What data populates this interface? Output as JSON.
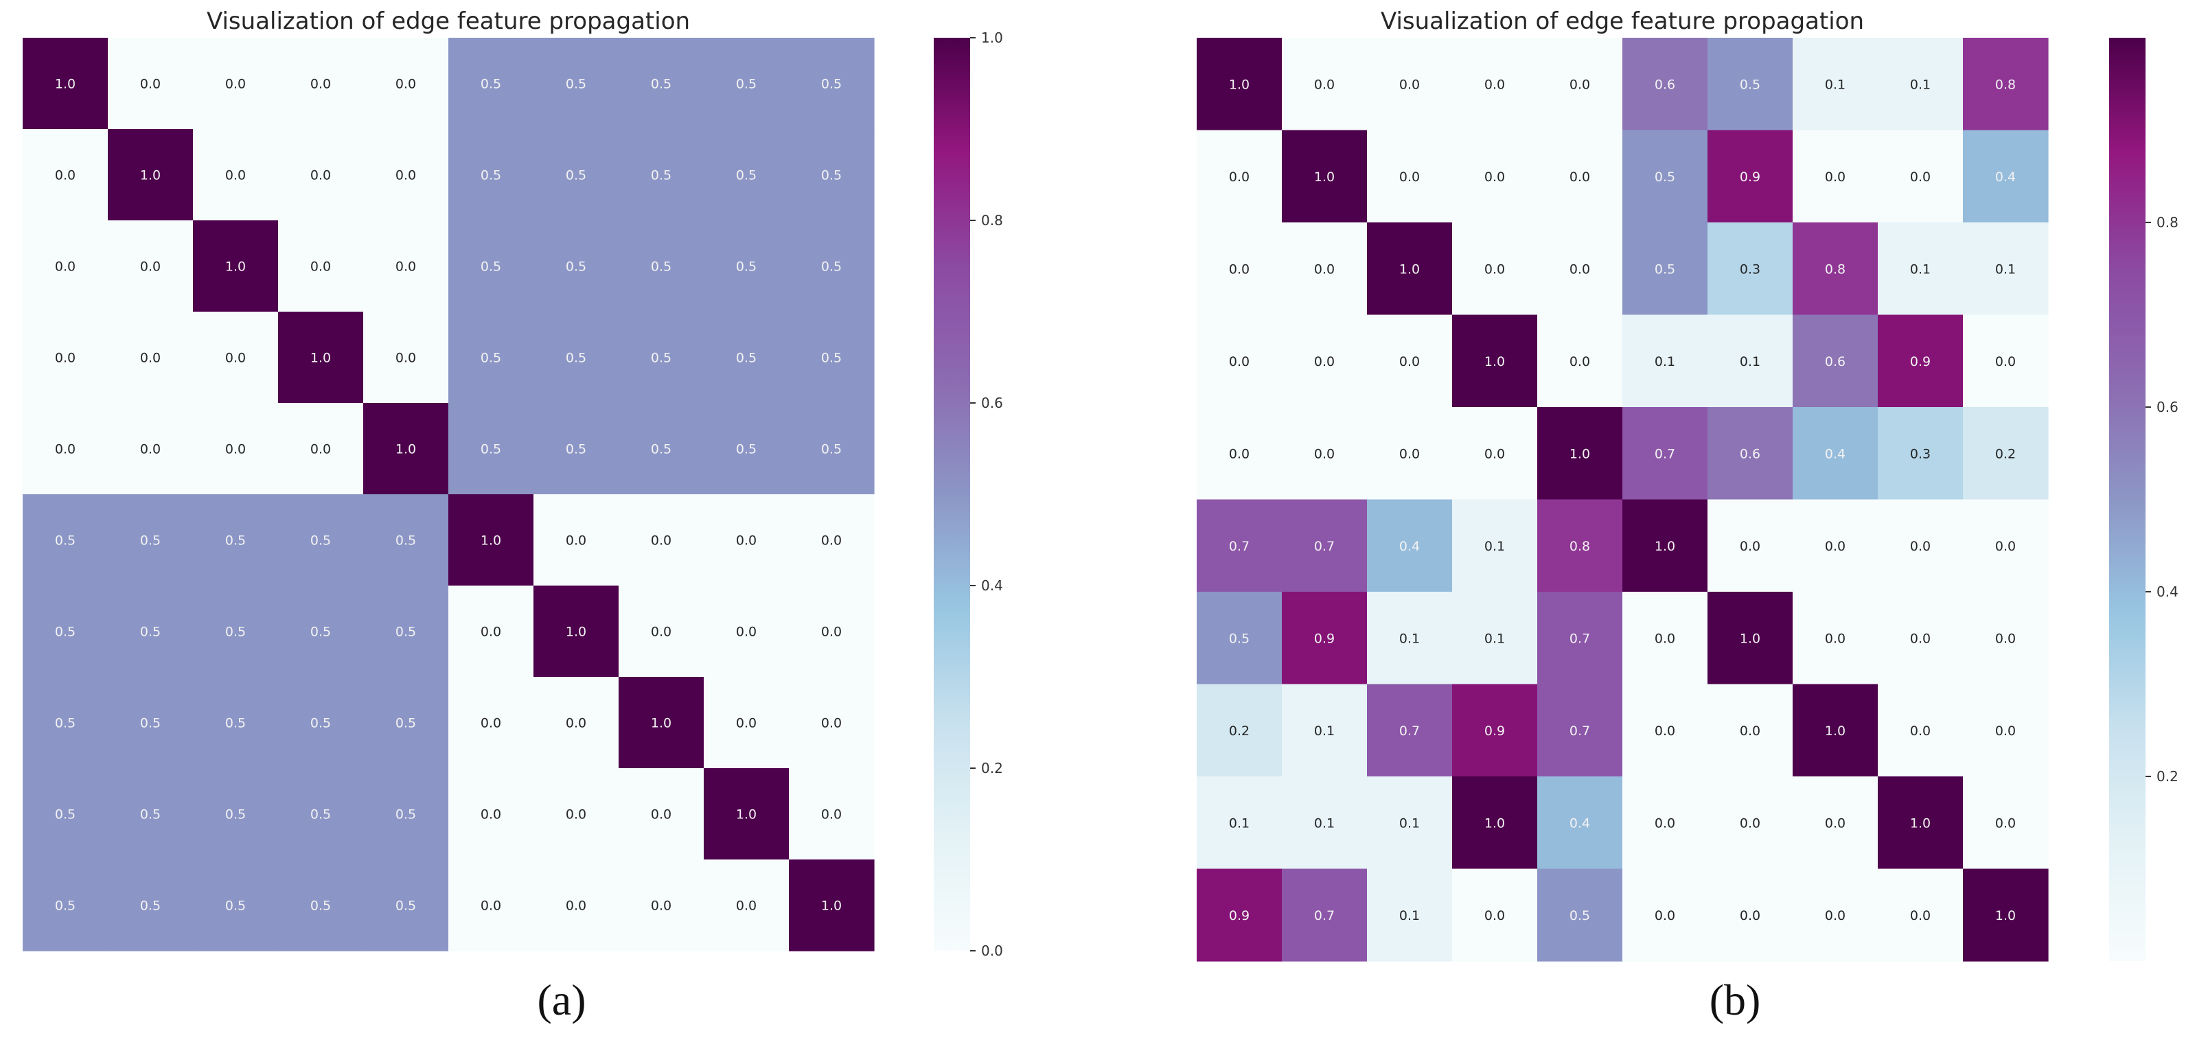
{
  "chart_data": [
    {
      "type": "heatmap",
      "panel_label": "(a)",
      "title": "Visualization of edge feature propagation",
      "xlabel": "",
      "ylabel": "",
      "colormap": "BuPu",
      "vmin": 0.0,
      "vmax": 1.0,
      "colorbar_ticks": [
        "0.0",
        "0.2",
        "0.4",
        "0.6",
        "0.8",
        "1.0"
      ],
      "colorbar_tick_values": [
        0.0,
        0.2,
        0.4,
        0.6,
        0.8,
        1.0
      ],
      "annotations": true,
      "matrix": [
        [
          1.0,
          0.0,
          0.0,
          0.0,
          0.0,
          0.5,
          0.5,
          0.5,
          0.5,
          0.5
        ],
        [
          0.0,
          1.0,
          0.0,
          0.0,
          0.0,
          0.5,
          0.5,
          0.5,
          0.5,
          0.5
        ],
        [
          0.0,
          0.0,
          1.0,
          0.0,
          0.0,
          0.5,
          0.5,
          0.5,
          0.5,
          0.5
        ],
        [
          0.0,
          0.0,
          0.0,
          1.0,
          0.0,
          0.5,
          0.5,
          0.5,
          0.5,
          0.5
        ],
        [
          0.0,
          0.0,
          0.0,
          0.0,
          1.0,
          0.5,
          0.5,
          0.5,
          0.5,
          0.5
        ],
        [
          0.5,
          0.5,
          0.5,
          0.5,
          0.5,
          1.0,
          0.0,
          0.0,
          0.0,
          0.0
        ],
        [
          0.5,
          0.5,
          0.5,
          0.5,
          0.5,
          0.0,
          1.0,
          0.0,
          0.0,
          0.0
        ],
        [
          0.5,
          0.5,
          0.5,
          0.5,
          0.5,
          0.0,
          0.0,
          1.0,
          0.0,
          0.0
        ],
        [
          0.5,
          0.5,
          0.5,
          0.5,
          0.5,
          0.0,
          0.0,
          0.0,
          1.0,
          0.0
        ],
        [
          0.5,
          0.5,
          0.5,
          0.5,
          0.5,
          0.0,
          0.0,
          0.0,
          0.0,
          1.0
        ]
      ]
    },
    {
      "type": "heatmap",
      "panel_label": "(b)",
      "title": "Visualization of edge feature propagation",
      "xlabel": "",
      "ylabel": "",
      "colormap": "BuPu",
      "vmin": 0.0,
      "vmax": 1.0,
      "colorbar_ticks": [
        "0.2",
        "0.4",
        "0.6",
        "0.8"
      ],
      "colorbar_tick_values": [
        0.2,
        0.4,
        0.6,
        0.8
      ],
      "annotations": true,
      "matrix": [
        [
          1.0,
          0.0,
          0.0,
          0.0,
          0.0,
          0.6,
          0.5,
          0.1,
          0.1,
          0.8
        ],
        [
          0.0,
          1.0,
          0.0,
          0.0,
          0.0,
          0.5,
          0.9,
          0.0,
          0.0,
          0.4
        ],
        [
          0.0,
          0.0,
          1.0,
          0.0,
          0.0,
          0.5,
          0.3,
          0.8,
          0.1,
          0.1
        ],
        [
          0.0,
          0.0,
          0.0,
          1.0,
          0.0,
          0.1,
          0.1,
          0.6,
          0.9,
          0.0
        ],
        [
          0.0,
          0.0,
          0.0,
          0.0,
          1.0,
          0.7,
          0.6,
          0.4,
          0.3,
          0.2
        ],
        [
          0.7,
          0.7,
          0.4,
          0.1,
          0.8,
          1.0,
          0.0,
          0.0,
          0.0,
          0.0
        ],
        [
          0.5,
          0.9,
          0.1,
          0.1,
          0.7,
          0.0,
          1.0,
          0.0,
          0.0,
          0.0
        ],
        [
          0.2,
          0.1,
          0.7,
          0.9,
          0.7,
          0.0,
          0.0,
          1.0,
          0.0,
          0.0
        ],
        [
          0.1,
          0.1,
          0.1,
          1.0,
          0.4,
          0.0,
          0.0,
          0.0,
          1.0,
          0.0
        ],
        [
          0.9,
          0.7,
          0.1,
          0.0,
          0.5,
          0.0,
          0.0,
          0.0,
          0.0,
          1.0
        ]
      ]
    }
  ]
}
